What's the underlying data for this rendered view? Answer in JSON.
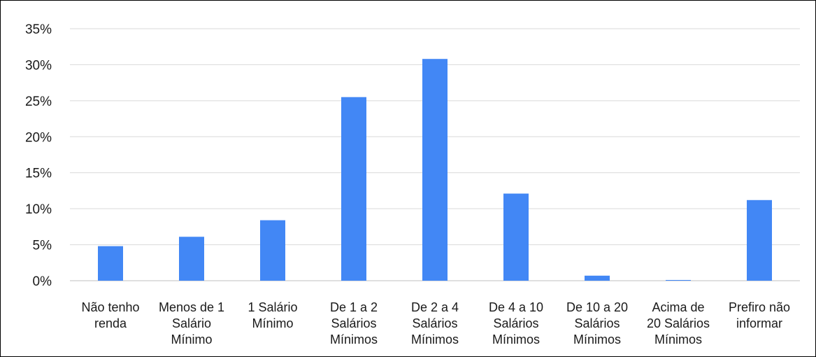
{
  "chart_data": {
    "type": "bar",
    "categories": [
      [
        "Não tenho",
        "renda"
      ],
      [
        "Menos de 1",
        "Salário",
        "Mínimo"
      ],
      [
        "1 Salário",
        "Mínimo"
      ],
      [
        "De 1 a 2",
        "Salários",
        "Mínimos"
      ],
      [
        "De 2 a 4",
        "Salários",
        "Mínimos"
      ],
      [
        "De 4 a 10",
        "Salários",
        "Mínimos"
      ],
      [
        "De 10 a 20",
        "Salários",
        "Mínimos"
      ],
      [
        "Acima de",
        "20 Salários",
        "Mínimos"
      ],
      [
        "Prefiro não",
        "informar"
      ]
    ],
    "values": [
      4.8,
      6.1,
      8.4,
      25.5,
      30.8,
      12.1,
      0.7,
      0.1,
      11.2
    ],
    "yticks": [
      0,
      5,
      10,
      15,
      20,
      25,
      30,
      35
    ],
    "ytick_labels": [
      "0%",
      "5%",
      "10%",
      "15%",
      "20%",
      "25%",
      "30%",
      "35%"
    ],
    "ylim": [
      0,
      35
    ],
    "grid": true,
    "colors": {
      "bar": "#4287f5"
    }
  }
}
